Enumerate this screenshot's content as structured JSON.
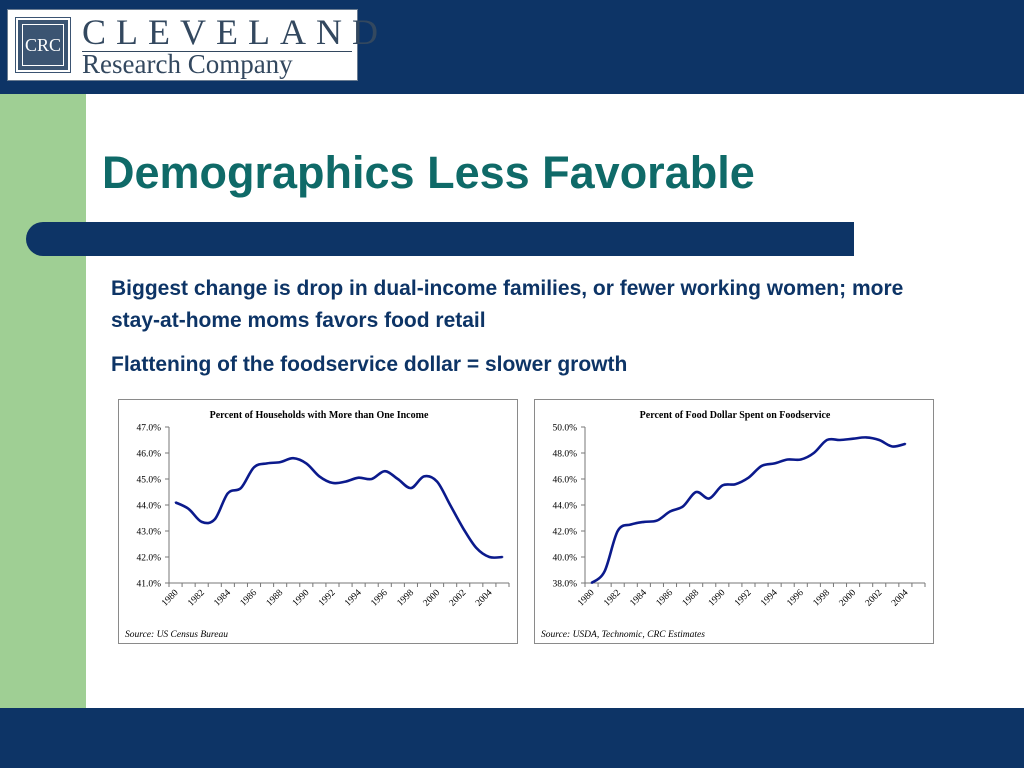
{
  "logo": {
    "box_text": "CRC",
    "line1": "CLEVELAND",
    "line2": "Research Company"
  },
  "slide": {
    "title": "Demographics Less Favorable",
    "bullets": [
      "Biggest change is drop in dual-income families, or fewer working women; more stay-at-home moms favors food retail",
      "Flattening of the foodservice dollar = slower growth"
    ]
  },
  "colors": {
    "header_navy": "#0d3466",
    "left_strip_green": "#9fcf94",
    "title_teal": "#0f6a68",
    "line_navy": "#0b1a8c"
  },
  "chart_data": [
    {
      "type": "line",
      "title": "Percent of Households with More than One Income",
      "source": "Source: US Census Bureau",
      "yticks": [
        "41.0%",
        "42.0%",
        "43.0%",
        "44.0%",
        "45.0%",
        "46.0%",
        "47.0%"
      ],
      "ylim": [
        41.0,
        47.0
      ],
      "xticks": [
        "1980",
        "1982",
        "1984",
        "1986",
        "1988",
        "1990",
        "1992",
        "1994",
        "1996",
        "1998",
        "2000",
        "2002",
        "2004"
      ],
      "xlim": [
        1980,
        2006
      ],
      "grid": false,
      "series": [
        {
          "x": [
            1980,
            1981,
            1982,
            1983,
            1984,
            1985,
            1986,
            1987,
            1988,
            1989,
            1990,
            1991,
            1992,
            1993,
            1994,
            1995,
            1996,
            1997,
            1998,
            1999,
            2000,
            2001,
            2002,
            2003,
            2004,
            2005
          ],
          "values": [
            44.1,
            43.85,
            43.35,
            43.45,
            44.45,
            44.65,
            45.45,
            45.6,
            45.65,
            45.8,
            45.6,
            45.1,
            44.85,
            44.9,
            45.05,
            45.0,
            45.3,
            45.0,
            44.65,
            45.1,
            44.9,
            44.0,
            43.1,
            42.35,
            42.0,
            42.0
          ]
        }
      ]
    },
    {
      "type": "line",
      "title": "Percent of Food Dollar Spent on Foodservice",
      "source": "Source: USDA, Technomic, CRC Estimates",
      "yticks": [
        "38.0%",
        "40.0%",
        "42.0%",
        "44.0%",
        "46.0%",
        "48.0%",
        "50.0%"
      ],
      "ylim": [
        38.0,
        50.0
      ],
      "xticks": [
        "1980",
        "1982",
        "1984",
        "1986",
        "1988",
        "1990",
        "1992",
        "1994",
        "1996",
        "1998",
        "2000",
        "2002",
        "2004"
      ],
      "xlim": [
        1980,
        2006
      ],
      "grid": false,
      "series": [
        {
          "x": [
            1980,
            1981,
            1982,
            1983,
            1984,
            1985,
            1986,
            1987,
            1988,
            1989,
            1990,
            1991,
            1992,
            1993,
            1994,
            1995,
            1996,
            1997,
            1998,
            1999,
            2000,
            2001,
            2002,
            2003,
            2004
          ],
          "values": [
            38.0,
            38.9,
            42.0,
            42.5,
            42.7,
            42.8,
            43.5,
            43.9,
            45.0,
            44.5,
            45.5,
            45.6,
            46.1,
            47.0,
            47.2,
            47.5,
            47.5,
            48.0,
            49.0,
            49.0,
            49.1,
            49.2,
            49.0,
            48.5,
            48.7
          ]
        }
      ]
    }
  ]
}
